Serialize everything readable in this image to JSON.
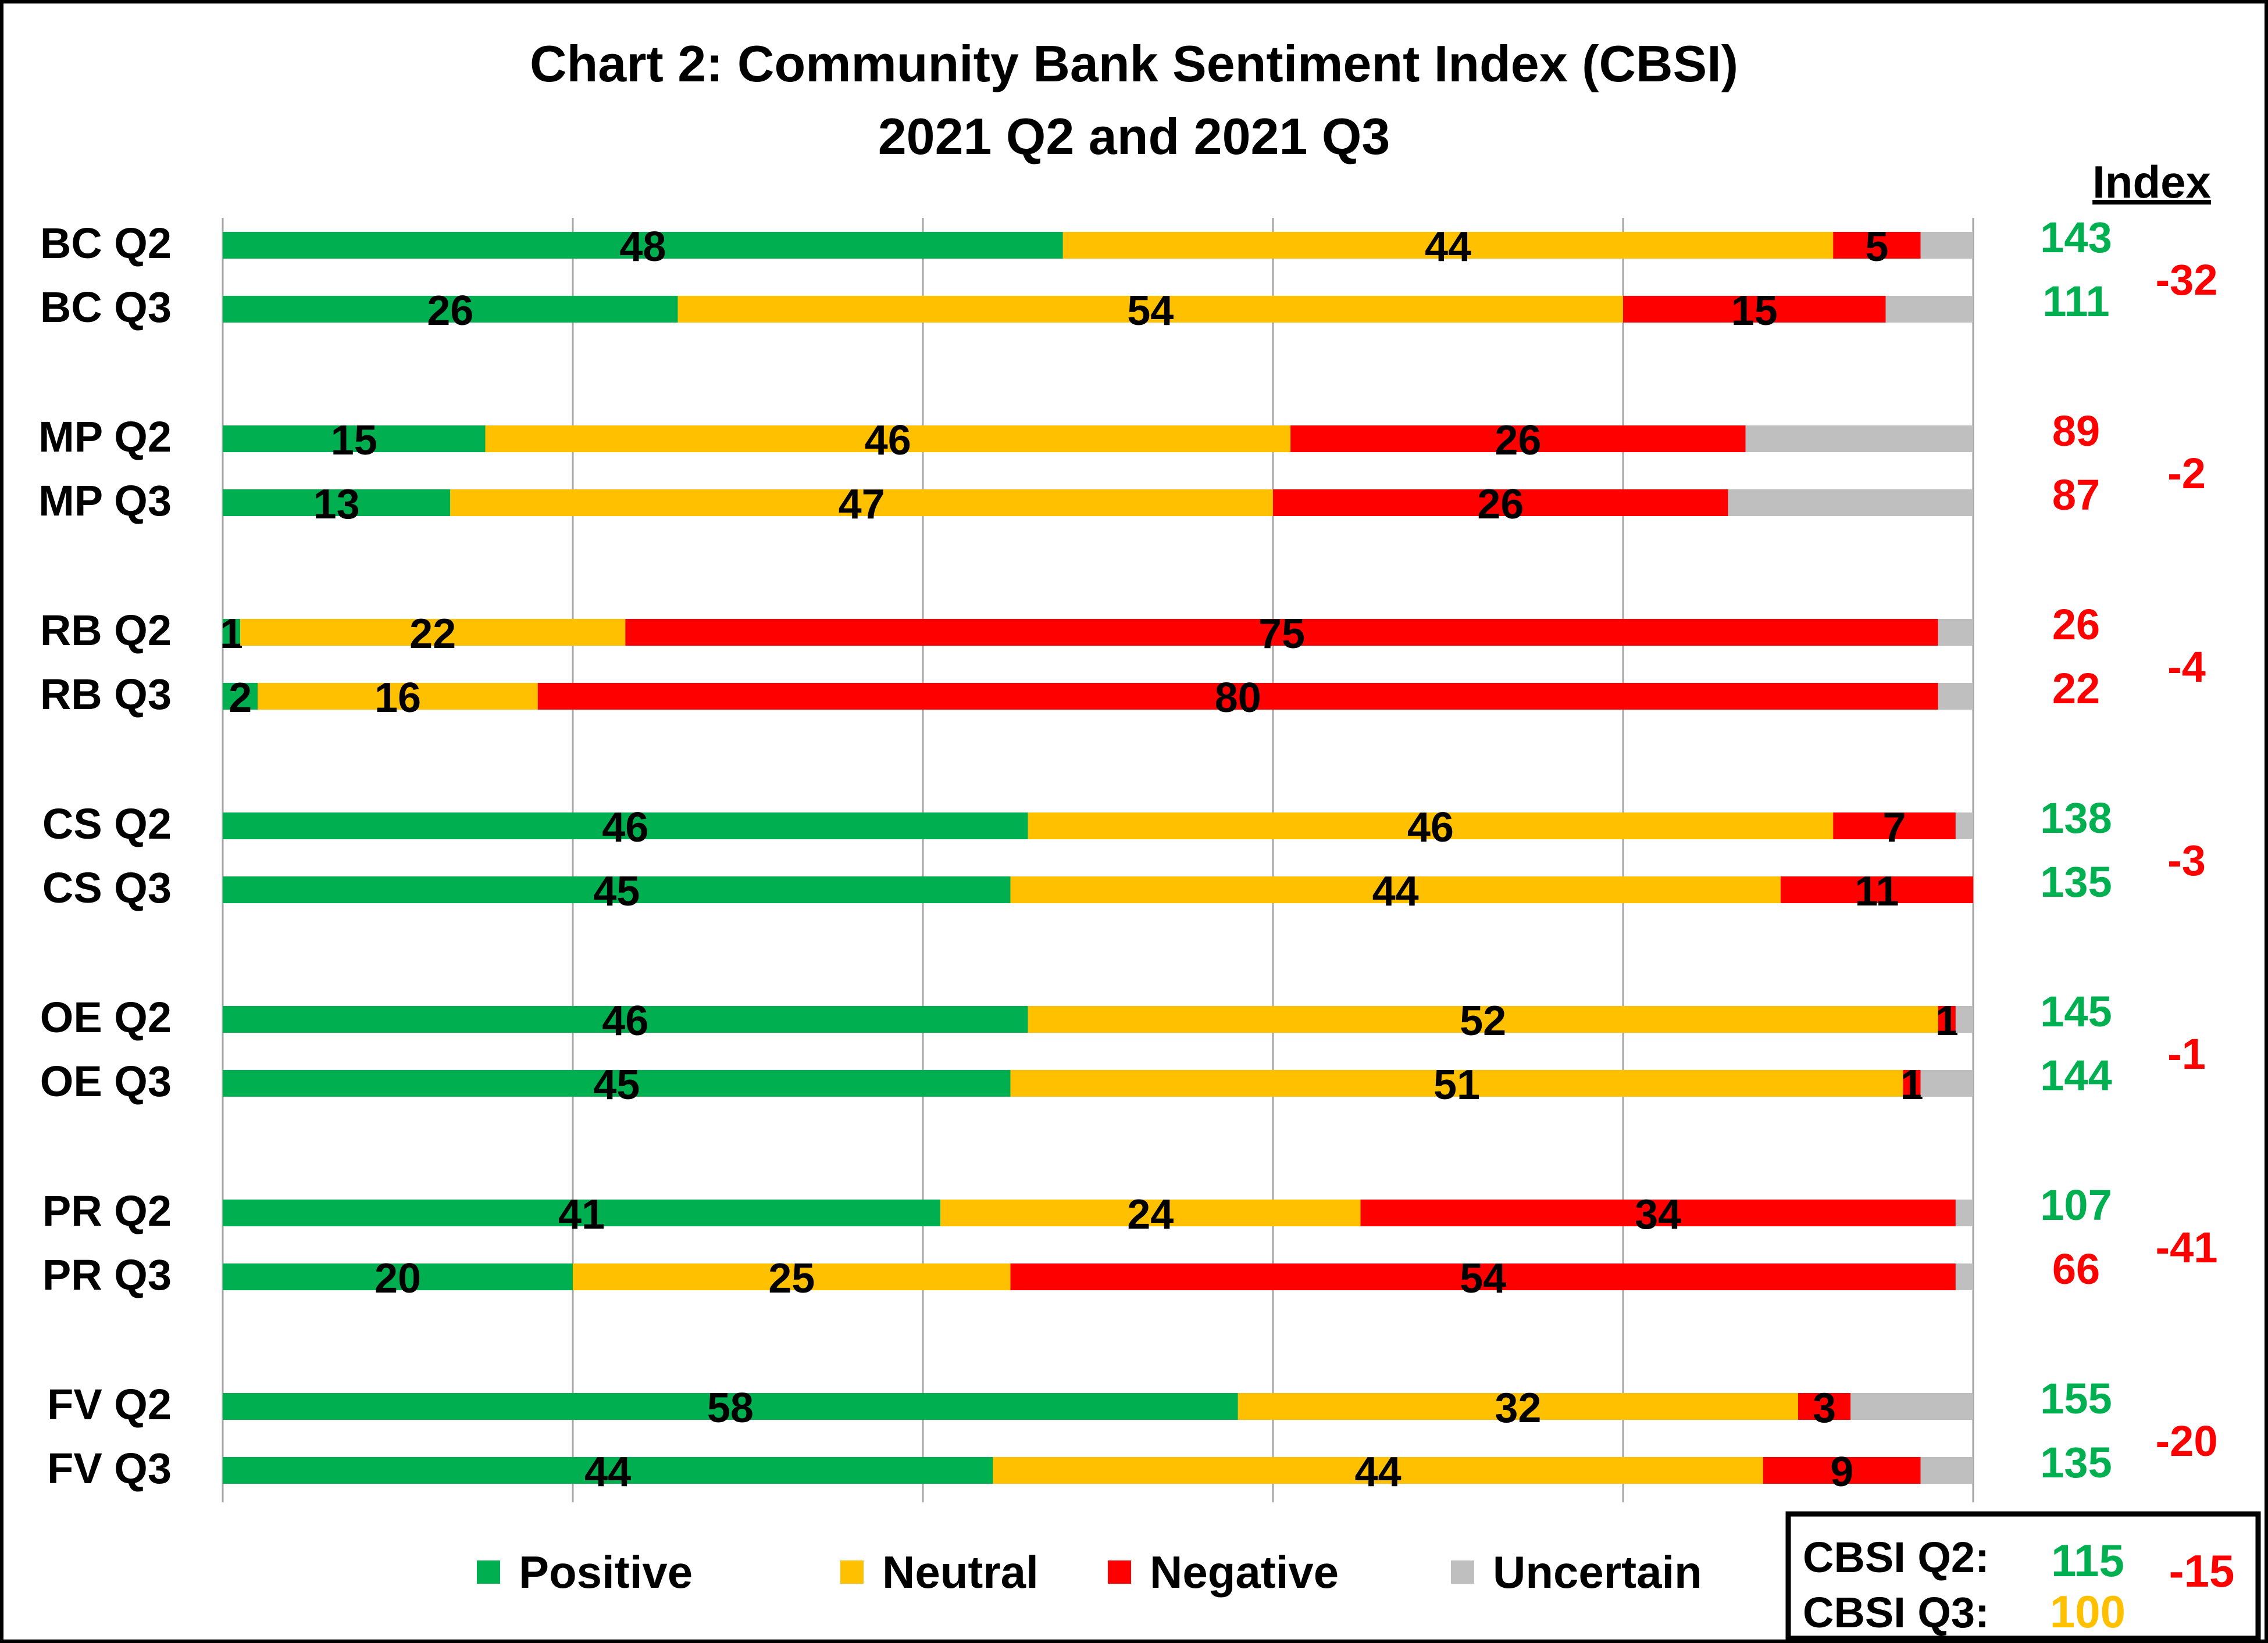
{
  "chart_data": {
    "type": "bar",
    "orientation": "horizontal",
    "stacked": true,
    "title": "Chart 2: Community Bank Sentiment Index (CBSI)",
    "subtitle": "2021 Q2 and 2021 Q3",
    "index_header": "Index",
    "xlim": [
      0,
      100
    ],
    "grid": true,
    "legend_position": "bottom",
    "series": [
      {
        "name": "Positive",
        "color": "#00B050"
      },
      {
        "name": "Neutral",
        "color": "#FFC000"
      },
      {
        "name": "Negative",
        "color": "#FF0000"
      },
      {
        "name": "Uncertain",
        "color": "#BFBFBF"
      }
    ],
    "groups": [
      {
        "change": "-32",
        "bars": [
          {
            "label": "BC Q2",
            "positive": 48,
            "neutral": 44,
            "negative": 5,
            "uncertain": 3,
            "index": "143",
            "index_color": "#00B050"
          },
          {
            "label": "BC Q3",
            "positive": 26,
            "neutral": 54,
            "negative": 15,
            "uncertain": 5,
            "index": "111",
            "index_color": "#00B050"
          }
        ]
      },
      {
        "change": "-2",
        "bars": [
          {
            "label": "MP Q2",
            "positive": 15,
            "neutral": 46,
            "negative": 26,
            "uncertain": 13,
            "index": "89",
            "index_color": "#FF0000"
          },
          {
            "label": "MP Q3",
            "positive": 13,
            "neutral": 47,
            "negative": 26,
            "uncertain": 14,
            "index": "87",
            "index_color": "#FF0000"
          }
        ]
      },
      {
        "change": "-4",
        "bars": [
          {
            "label": "RB Q2",
            "positive": 1,
            "neutral": 22,
            "negative": 75,
            "uncertain": 2,
            "index": "26",
            "index_color": "#FF0000"
          },
          {
            "label": "RB Q3",
            "positive": 2,
            "neutral": 16,
            "negative": 80,
            "uncertain": 2,
            "index": "22",
            "index_color": "#FF0000"
          }
        ]
      },
      {
        "change": "-3",
        "bars": [
          {
            "label": "CS Q2",
            "positive": 46,
            "neutral": 46,
            "negative": 7,
            "uncertain": 1,
            "index": "138",
            "index_color": "#00B050"
          },
          {
            "label": "CS Q3",
            "positive": 45,
            "neutral": 44,
            "negative": 11,
            "uncertain": 0,
            "index": "135",
            "index_color": "#00B050"
          }
        ]
      },
      {
        "change": "-1",
        "bars": [
          {
            "label": "OE Q2",
            "positive": 46,
            "neutral": 52,
            "negative": 1,
            "uncertain": 1,
            "index": "145",
            "index_color": "#00B050"
          },
          {
            "label": "OE Q3",
            "positive": 45,
            "neutral": 51,
            "negative": 1,
            "uncertain": 3,
            "index": "144",
            "index_color": "#00B050"
          }
        ]
      },
      {
        "change": "-41",
        "bars": [
          {
            "label": "PR Q2",
            "positive": 41,
            "neutral": 24,
            "negative": 34,
            "uncertain": 1,
            "index": "107",
            "index_color": "#00B050"
          },
          {
            "label": "PR Q3",
            "positive": 20,
            "neutral": 25,
            "negative": 54,
            "uncertain": 1,
            "index": "66",
            "index_color": "#FF0000"
          }
        ]
      },
      {
        "change": "-20",
        "bars": [
          {
            "label": "FV Q2",
            "positive": 58,
            "neutral": 32,
            "negative": 3,
            "uncertain": 7,
            "index": "155",
            "index_color": "#00B050"
          },
          {
            "label": "FV Q3",
            "positive": 44,
            "neutral": 44,
            "negative": 9,
            "uncertain": 3,
            "index": "135",
            "index_color": "#00B050"
          }
        ]
      }
    ],
    "cbsi_box": {
      "q2_label": "CBSI Q2:",
      "q2_value": "115",
      "q2_color": "#00B050",
      "q3_label": "CBSI Q3:",
      "q3_value": "100",
      "q3_color": "#FFC000",
      "change": "-15",
      "change_color": "#FF0000"
    },
    "change_color": "#FF0000"
  }
}
